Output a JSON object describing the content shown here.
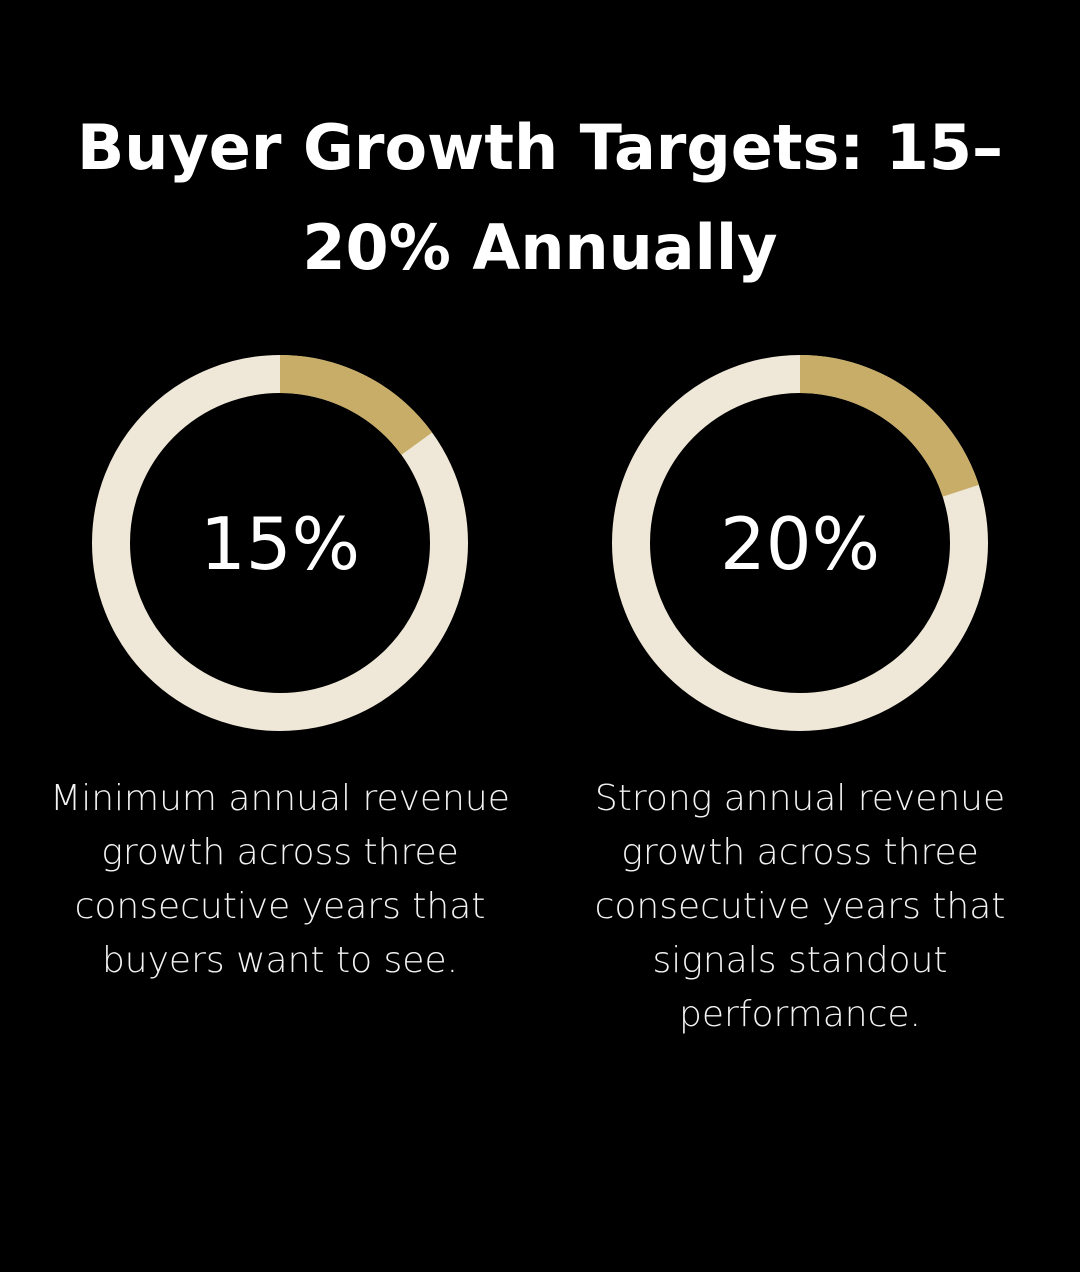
{
  "title": "Buyer Growth Targets: 15–20% Annually",
  "chart_data": [
    {
      "type": "donut",
      "values": [
        15
      ],
      "value_labels": [
        "15%"
      ],
      "color": "#c8ad68",
      "track_color": "#efe7d7",
      "caption": "Minimum annual revenue growth across three consecutive years that buyers want to see."
    },
    {
      "type": "donut",
      "values": [
        20
      ],
      "value_labels": [
        "20%"
      ],
      "color": "#c8ad68",
      "track_color": "#efe7d7",
      "caption": "Strong annual revenue growth across three consecutive years that signals standout performance."
    }
  ]
}
